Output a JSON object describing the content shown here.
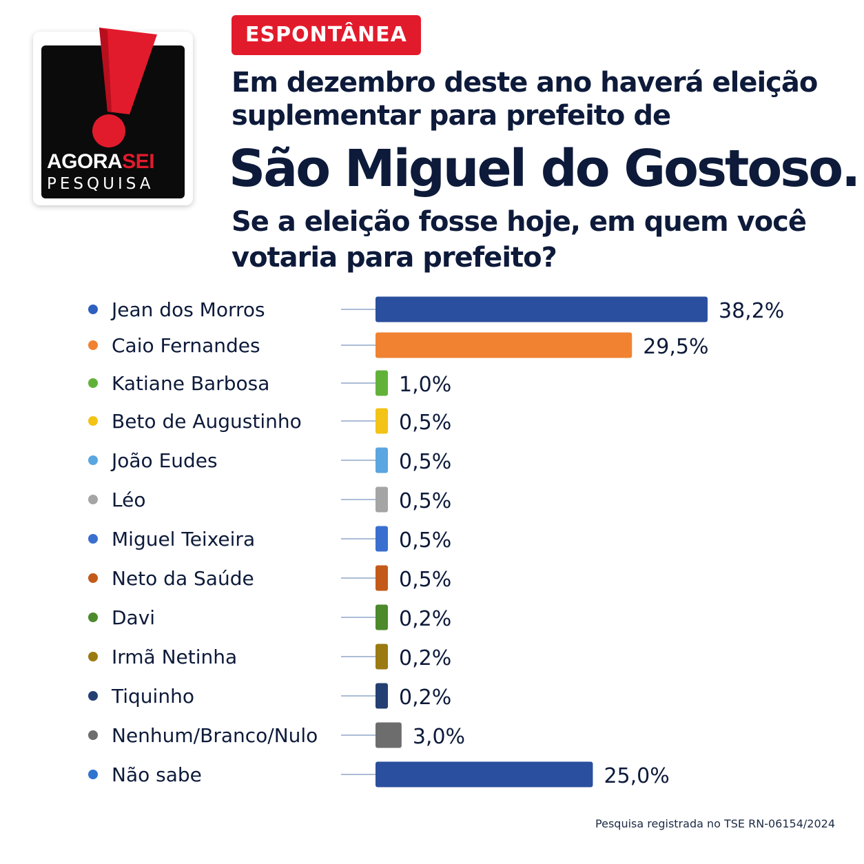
{
  "header": {
    "tag": "ESPONTÂNEA",
    "intro_line1": "Em dezembro deste ano haverá eleição",
    "intro_line2": "suplementar para prefeito de",
    "city": "São Miguel do Gostoso.",
    "question_line1": "Se a eleição fosse hoje, em quem você",
    "question_line2": "votaria para prefeito?"
  },
  "logo": {
    "brand_part1": "AGORA",
    "brand_part2": "SEI",
    "subtitle": "PESQUISA",
    "icon": "exclamation-mark-icon",
    "colors": {
      "mark": "#e21b2c",
      "background": "#0b0b0b"
    }
  },
  "footnote": "Pesquisa registrada no TSE RN-06154/2024",
  "chart_data": {
    "type": "bar",
    "orientation": "horizontal",
    "categories": [
      "Jean dos Morros",
      "Caio Fernandes",
      "Katiane Barbosa",
      "Beto de Augustinho",
      "João Eudes",
      "Léo",
      "Miguel Teixeira",
      "Neto da Saúde",
      "Davi",
      "Irmã Netinha",
      "Tiquinho",
      "Nenhum/Branco/Nulo",
      "Não sabe"
    ],
    "values": [
      38.2,
      29.5,
      1.0,
      0.5,
      0.5,
      0.5,
      0.5,
      0.5,
      0.2,
      0.2,
      0.2,
      3.0,
      25.0
    ],
    "value_labels": [
      "38,2%",
      "29,5%",
      "1,0%",
      "0,5%",
      "0,5%",
      "0,5%",
      "0,5%",
      "0,5%",
      "0,2%",
      "0,2%",
      "0,2%",
      "3,0%",
      "25,0%"
    ],
    "colors": [
      "#2a4f9e",
      "#f08232",
      "#62b23a",
      "#f3c316",
      "#5aa6e0",
      "#a5a5a5",
      "#3a6fd0",
      "#c45a1a",
      "#4c8a2c",
      "#9b7a12",
      "#243f72",
      "#6d6d6d",
      "#2a4f9e"
    ],
    "dot_colors": [
      "#2f5fbf",
      "#f08232",
      "#62b23a",
      "#f3c316",
      "#5aa6e0",
      "#a5a5a5",
      "#3a6fd0",
      "#c45a1a",
      "#4c8a2c",
      "#9b7a12",
      "#243f72",
      "#6d6d6d",
      "#2f74d0"
    ],
    "xlim": [
      0,
      38.2
    ],
    "grid": false,
    "legend": "none"
  }
}
